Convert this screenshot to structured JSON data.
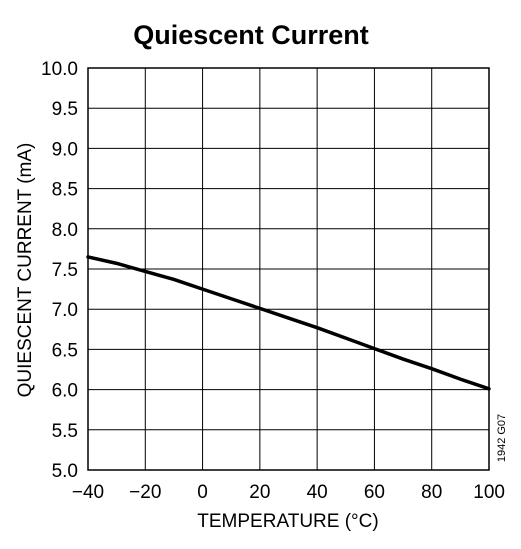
{
  "chart_data": {
    "type": "line",
    "title": "Quiescent Current",
    "xlabel": "TEMPERATURE (°C)",
    "ylabel": "QUIESCENT CURRENT (mA)",
    "xlim": [
      -40,
      100
    ],
    "ylim": [
      5.0,
      10.0
    ],
    "x_ticks": [
      -40,
      -20,
      0,
      20,
      40,
      60,
      80,
      100
    ],
    "x_tick_labels": [
      "−40",
      "−20",
      "0",
      "20",
      "40",
      "60",
      "80",
      "100"
    ],
    "y_ticks": [
      5.0,
      5.5,
      6.0,
      6.5,
      7.0,
      7.5,
      8.0,
      8.5,
      9.0,
      9.5,
      10.0
    ],
    "y_tick_labels": [
      "5.0",
      "5.5",
      "6.0",
      "6.5",
      "7.0",
      "7.5",
      "8.0",
      "8.5",
      "9.0",
      "9.5",
      "10.0"
    ],
    "grid": true,
    "series": [
      {
        "x": [
          -40,
          -30,
          -20,
          -10,
          0,
          10,
          20,
          30,
          40,
          50,
          60,
          70,
          80,
          90,
          100
        ],
        "y": [
          7.65,
          7.57,
          7.47,
          7.37,
          7.25,
          7.13,
          7.01,
          6.89,
          6.77,
          6.64,
          6.51,
          6.38,
          6.26,
          6.13,
          6.01
        ]
      }
    ],
    "figure_code": "1942 G07"
  }
}
